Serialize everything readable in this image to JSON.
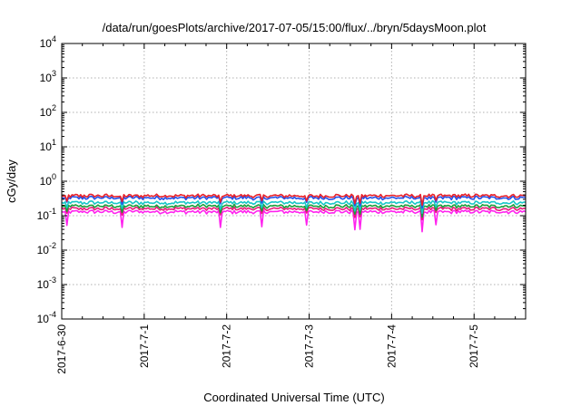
{
  "chart_data": {
    "type": "line",
    "title": "/data/run/goesPlots/archive/2017-07-05/15:00/flux/../bryn/5daysMoon.plot",
    "xlabel": "Coordinated Universal Time (UTC)",
    "ylabel": "cGy/day",
    "y_scale": "log",
    "ylim": [
      0.0001,
      10000
    ],
    "y_ticks": [
      {
        "base": "10",
        "exp": "-4",
        "value": 0.0001
      },
      {
        "base": "10",
        "exp": "-3",
        "value": 0.001
      },
      {
        "base": "10",
        "exp": "-2",
        "value": 0.01
      },
      {
        "base": "10",
        "exp": "-1",
        "value": 0.1
      },
      {
        "base": "10",
        "exp": "0",
        "value": 1
      },
      {
        "base": "10",
        "exp": "1",
        "value": 10
      },
      {
        "base": "10",
        "exp": "2",
        "value": 100
      },
      {
        "base": "10",
        "exp": "3",
        "value": 1000
      },
      {
        "base": "10",
        "exp": "4",
        "value": 10000
      }
    ],
    "xlim": [
      "2017-06-30",
      "2017-07-05 15:00"
    ],
    "x_ticks": [
      "2017-6-30",
      "2017-7-1",
      "2017-7-2",
      "2017-7-3",
      "2017-7-4",
      "2017-7-5"
    ],
    "grid": true,
    "series": [
      {
        "color": "#e8212a",
        "level": 0.38
      },
      {
        "color": "#2350e8",
        "level": 0.33
      },
      {
        "color": "#18c7c7",
        "level": 0.24
      },
      {
        "color": "#1a9e3a",
        "level": 0.19
      },
      {
        "color": "#e81a7a",
        "level": 0.16
      },
      {
        "color": "#ff22ee",
        "level": 0.13
      }
    ]
  }
}
